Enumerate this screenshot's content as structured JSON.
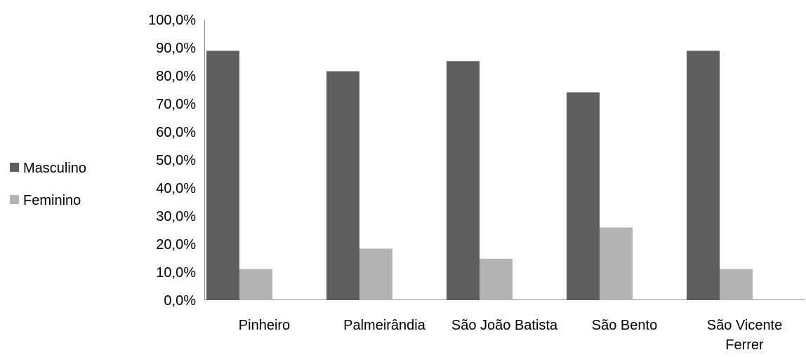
{
  "chart_data": {
    "type": "bar",
    "categories": [
      "Pinheiro",
      "Palmeirândia",
      "São João Batista",
      "São Bento",
      "São Vicente Ferrer"
    ],
    "series": [
      {
        "name": "Masculino",
        "color": "#5f5f5f",
        "values": [
          88.9,
          81.6,
          85.2,
          74.1,
          88.9
        ]
      },
      {
        "name": "Feminino",
        "color": "#b3b3b3",
        "values": [
          11.1,
          18.4,
          14.8,
          25.9,
          11.1
        ]
      }
    ],
    "yticks": [
      "0,0%",
      "10,0%",
      "20,0%",
      "30,0%",
      "40,0%",
      "50,0%",
      "60,0%",
      "70,0%",
      "80,0%",
      "90,0%",
      "100,0%"
    ],
    "ylim": [
      0,
      100
    ],
    "legend_position": "left",
    "grid": false
  }
}
